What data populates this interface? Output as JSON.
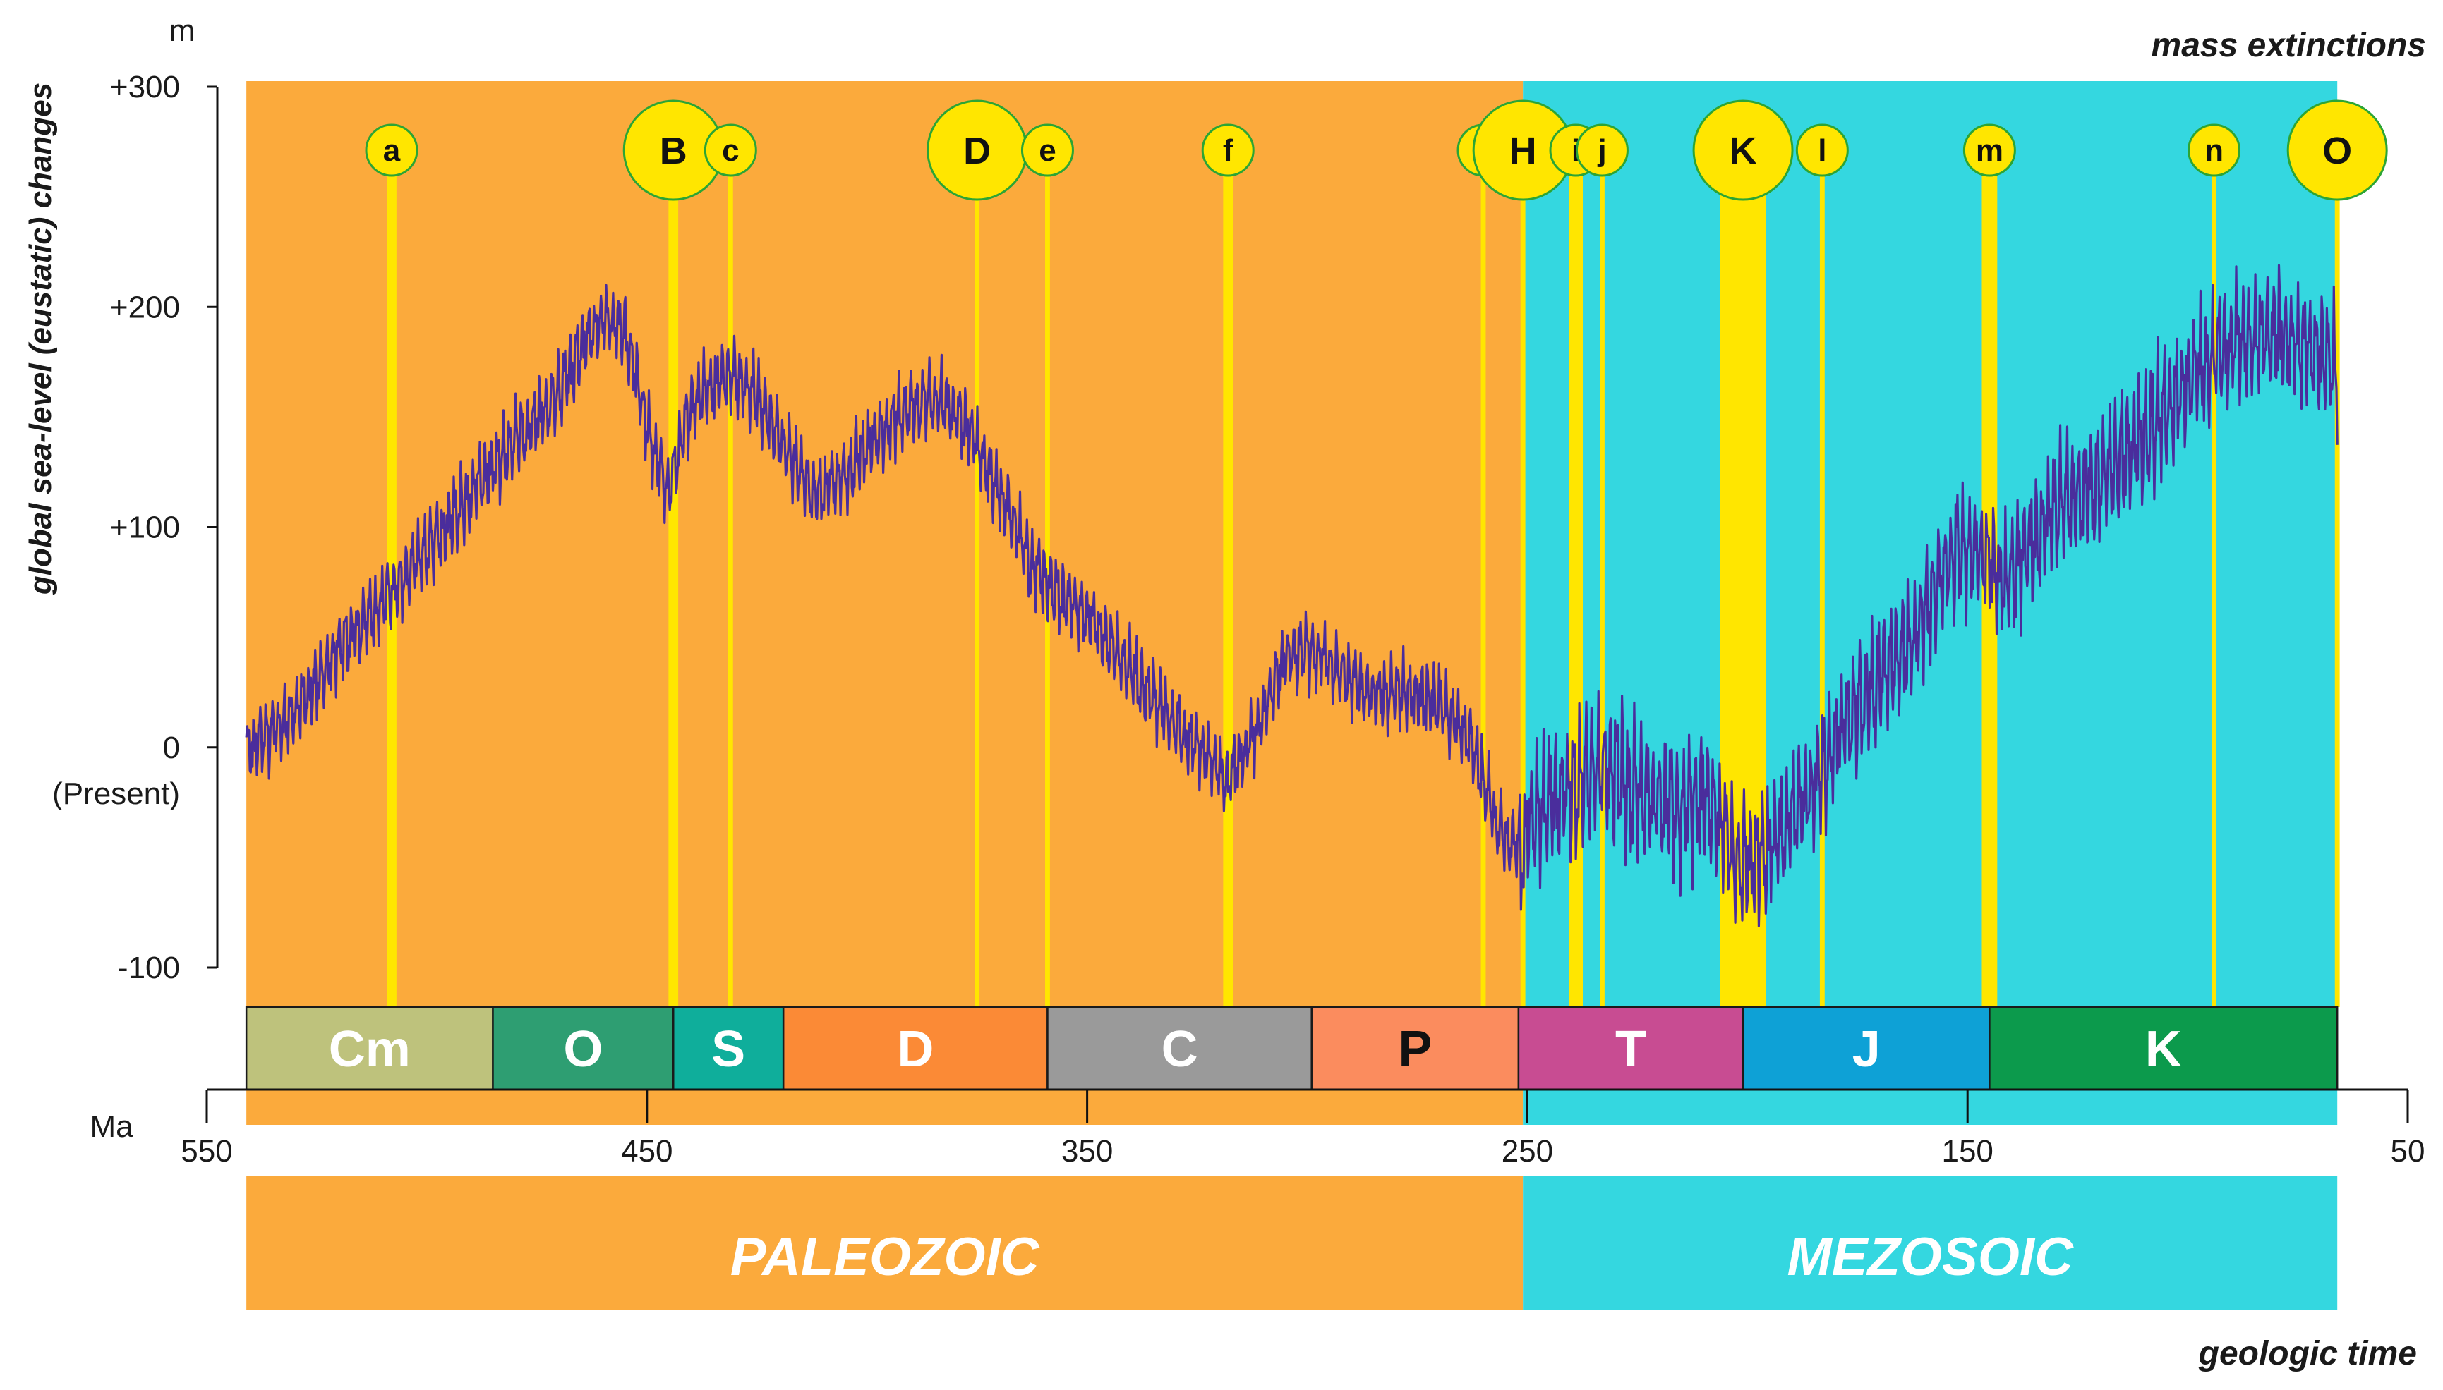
{
  "chart_data": {
    "type": "line",
    "title": "",
    "ylabel": "global sea-level (eustatic) changes",
    "y_unit": "m",
    "xlabel": "geologic time",
    "x_unit": "Ma",
    "top_right_label": "mass extinctions",
    "xlim": [
      550,
      50
    ],
    "x_ticks": [
      550,
      450,
      350,
      250,
      150,
      50
    ],
    "ylim": [
      -100,
      300
    ],
    "y_ticks": [
      {
        "value": 300,
        "label": "+300"
      },
      {
        "value": 200,
        "label": "+200"
      },
      {
        "value": 100,
        "label": "+100"
      },
      {
        "value": 0,
        "label": "0"
      },
      {
        "value": -100,
        "label": "-100"
      }
    ],
    "zero_note": "(Present)",
    "eras": [
      {
        "name": "PALEOZOIC",
        "start": 541,
        "end": 251,
        "color": "#FBAA3C"
      },
      {
        "name": "MEZOSOIC",
        "start": 251,
        "end": 66,
        "color": "#34D7E0"
      }
    ],
    "periods": [
      {
        "label": "Cm",
        "start": 541,
        "end": 485,
        "color": "#BEC27C",
        "text_color": "#ffffff"
      },
      {
        "label": "O",
        "start": 485,
        "end": 444,
        "color": "#2E9E72",
        "text_color": "#ffffff"
      },
      {
        "label": "S",
        "start": 444,
        "end": 419,
        "color": "#0FAE9B",
        "text_color": "#ffffff"
      },
      {
        "label": "D",
        "start": 419,
        "end": 359,
        "color": "#FB8A36",
        "text_color": "#ffffff"
      },
      {
        "label": "C",
        "start": 359,
        "end": 299,
        "color": "#9A9A9A",
        "text_color": "#ffffff"
      },
      {
        "label": "P",
        "start": 299,
        "end": 252,
        "color": "#FB8C5E",
        "text_color": "#111111"
      },
      {
        "label": "T",
        "start": 252,
        "end": 201,
        "color": "#C84C92",
        "text_color": "#ffffff"
      },
      {
        "label": "J",
        "start": 201,
        "end": 145,
        "color": "#0EA1D6",
        "text_color": "#ffffff"
      },
      {
        "label": "K",
        "start": 145,
        "end": 66,
        "color": "#0C9A4C",
        "text_color": "#ffffff"
      }
    ],
    "extinctions": [
      {
        "label": "a",
        "age": 508,
        "major": false,
        "bar_width": 2.2
      },
      {
        "label": "B",
        "age": 444,
        "major": true,
        "bar_width": 2.2
      },
      {
        "label": "c",
        "age": 431,
        "major": false,
        "bar_width": 1.1
      },
      {
        "label": "D",
        "age": 375,
        "major": true,
        "bar_width": 1.1
      },
      {
        "label": "e",
        "age": 359,
        "major": false,
        "bar_width": 1.1
      },
      {
        "label": "f",
        "age": 318,
        "major": false,
        "bar_width": 2.2
      },
      {
        "label": "g",
        "age": 260,
        "major": false,
        "bar_width": 1.1
      },
      {
        "label": "H",
        "age": 251,
        "major": true,
        "bar_width": 1.1
      },
      {
        "label": "i",
        "age": 239,
        "major": false,
        "bar_width": 3.2
      },
      {
        "label": "j",
        "age": 233,
        "major": false,
        "bar_width": 1.1
      },
      {
        "label": "K",
        "age": 201,
        "major": true,
        "bar_width": 10.5
      },
      {
        "label": "l",
        "age": 183,
        "major": false,
        "bar_width": 1.1
      },
      {
        "label": "m",
        "age": 145,
        "major": false,
        "bar_width": 3.5
      },
      {
        "label": "n",
        "age": 94,
        "major": false,
        "bar_width": 1.1
      },
      {
        "label": "O",
        "age": 66,
        "major": true,
        "bar_width": 1.1
      }
    ],
    "series": [
      {
        "name": "global sea level",
        "color": "#4A2D9C",
        "trend": [
          [
            541,
            5
          ],
          [
            530,
            20
          ],
          [
            520,
            50
          ],
          [
            510,
            70
          ],
          [
            500,
            95
          ],
          [
            490,
            120
          ],
          [
            480,
            145
          ],
          [
            470,
            165
          ],
          [
            465,
            185
          ],
          [
            460,
            200
          ],
          [
            455,
            195
          ],
          [
            450,
            150
          ],
          [
            445,
            120
          ],
          [
            440,
            160
          ],
          [
            432,
            175
          ],
          [
            425,
            165
          ],
          [
            418,
            140
          ],
          [
            412,
            120
          ],
          [
            405,
            130
          ],
          [
            398,
            145
          ],
          [
            390,
            160
          ],
          [
            383,
            162
          ],
          [
            377,
            150
          ],
          [
            370,
            120
          ],
          [
            363,
            90
          ],
          [
            357,
            75
          ],
          [
            350,
            65
          ],
          [
            340,
            40
          ],
          [
            330,
            15
          ],
          [
            322,
            0
          ],
          [
            318,
            -10
          ],
          [
            312,
            10
          ],
          [
            305,
            45
          ],
          [
            300,
            50
          ],
          [
            294,
            40
          ],
          [
            287,
            30
          ],
          [
            280,
            30
          ],
          [
            270,
            25
          ],
          [
            263,
            10
          ],
          [
            257,
            -30
          ],
          [
            252,
            -40
          ],
          [
            248,
            -20
          ],
          [
            240,
            -10
          ],
          [
            233,
            0
          ],
          [
            225,
            -10
          ],
          [
            215,
            -20
          ],
          [
            208,
            -15
          ],
          [
            202,
            -45
          ],
          [
            196,
            -40
          ],
          [
            190,
            -25
          ],
          [
            183,
            0
          ],
          [
            178,
            20
          ],
          [
            170,
            40
          ],
          [
            163,
            55
          ],
          [
            157,
            80
          ],
          [
            152,
            100
          ],
          [
            147,
            95
          ],
          [
            142,
            80
          ],
          [
            136,
            100
          ],
          [
            128,
            120
          ],
          [
            120,
            130
          ],
          [
            110,
            150
          ],
          [
            100,
            175
          ],
          [
            94,
            185
          ],
          [
            88,
            195
          ],
          [
            80,
            195
          ],
          [
            72,
            190
          ],
          [
            66,
            180
          ]
        ]
      }
    ]
  }
}
